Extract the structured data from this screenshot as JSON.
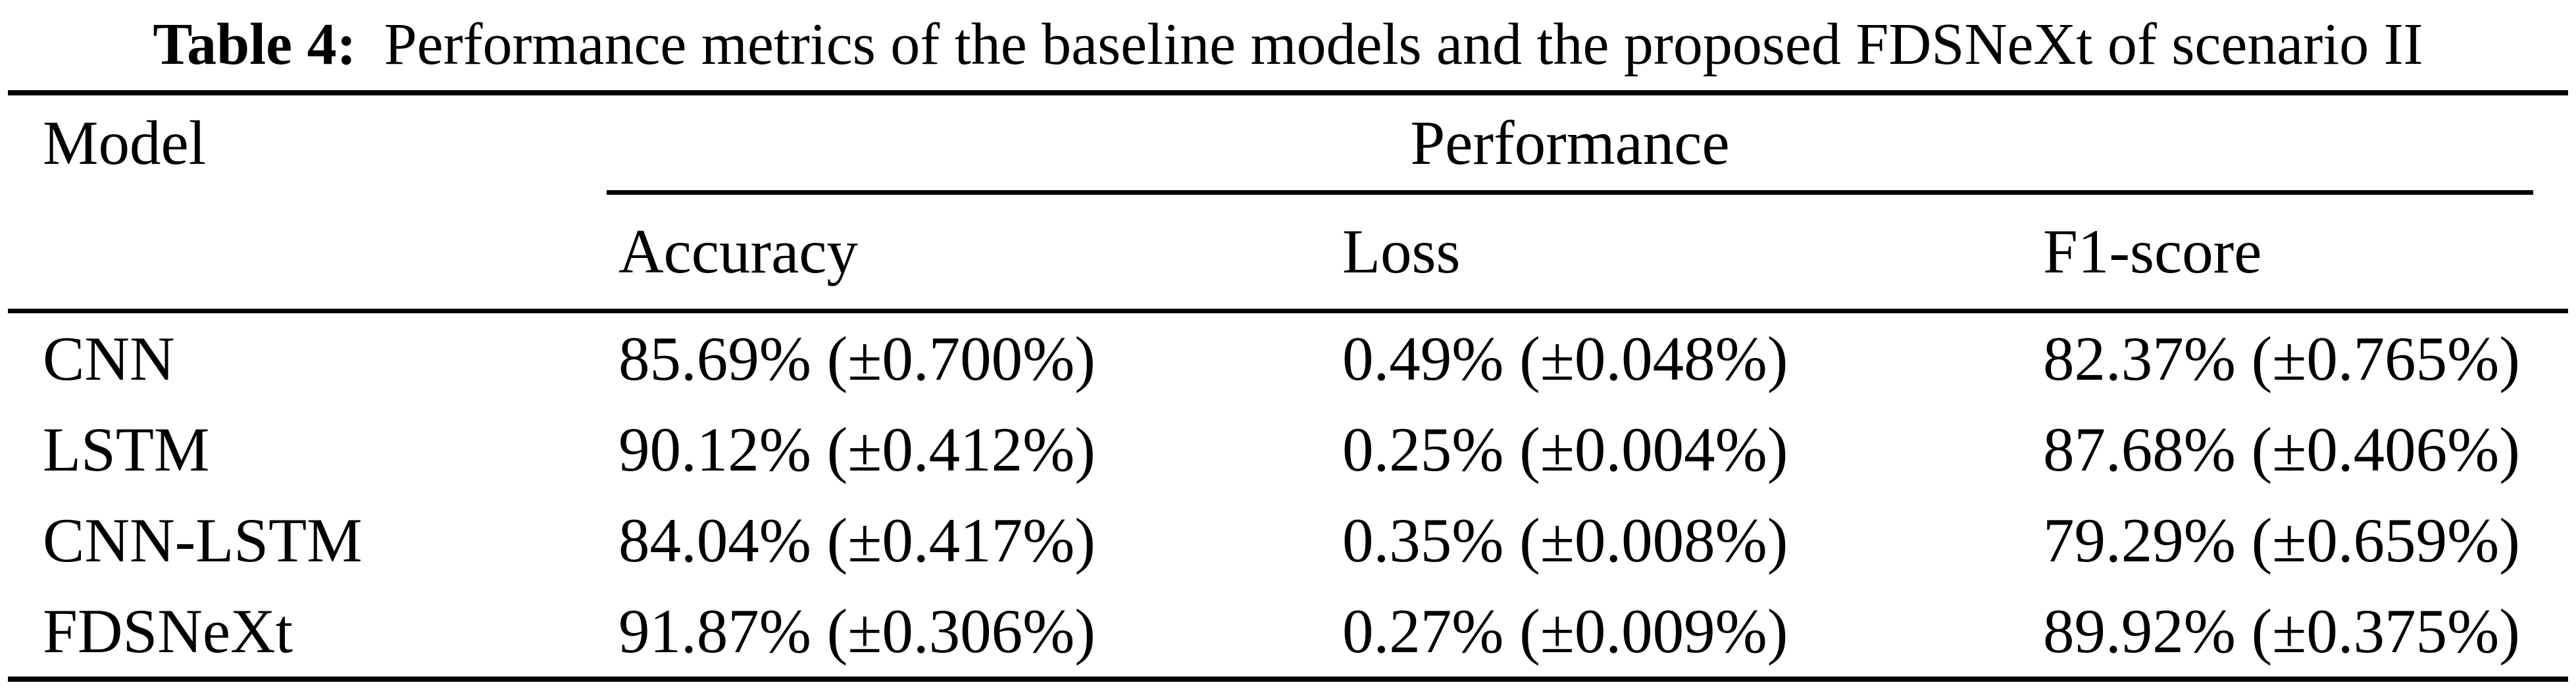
{
  "caption": {
    "label": "Table 4:",
    "text": "Performance metrics of the baseline models and the proposed FDSNeXt of scenario II"
  },
  "table": {
    "columns": {
      "model": "Model",
      "group": "Performance",
      "metrics": [
        "Accuracy",
        "Loss",
        "F1-score"
      ]
    },
    "rows": [
      {
        "model": "CNN",
        "accuracy": "85.69% (±0.700%)",
        "loss": "0.49% (±0.048%)",
        "f1": "82.37% (±0.765%)"
      },
      {
        "model": "LSTM",
        "accuracy": "90.12% (±0.412%)",
        "loss": "0.25% (±0.004%)",
        "f1": "87.68% (±0.406%)"
      },
      {
        "model": "CNN-LSTM",
        "accuracy": "84.04% (±0.417%)",
        "loss": "0.35% (±0.008%)",
        "f1": "79.29% (±0.659%)"
      },
      {
        "model": "FDSNeXt",
        "accuracy": "91.87% (±0.306%)",
        "loss": "0.27% (±0.009%)",
        "f1": "89.92% (±0.375%)"
      }
    ],
    "text_color": "#000000",
    "background_color": "#ffffff"
  },
  "chart_data": {
    "type": "table",
    "title": "Table 4: Performance metrics of the baseline models and the proposed FDSNeXt of scenario II",
    "columns": [
      "Model",
      "Accuracy",
      "Loss",
      "F1-score"
    ],
    "rows": [
      [
        "CNN",
        "85.69% (±0.700%)",
        "0.49% (±0.048%)",
        "82.37% (±0.765%)"
      ],
      [
        "LSTM",
        "90.12% (±0.412%)",
        "0.25% (±0.004%)",
        "87.68% (±0.406%)"
      ],
      [
        "CNN-LSTM",
        "84.04% (±0.417%)",
        "0.35% (±0.008%)",
        "79.29% (±0.659%)"
      ],
      [
        "FDSNeXt",
        "91.87% (±0.306%)",
        "0.27% (±0.009%)",
        "89.92% (±0.375%)"
      ]
    ]
  }
}
